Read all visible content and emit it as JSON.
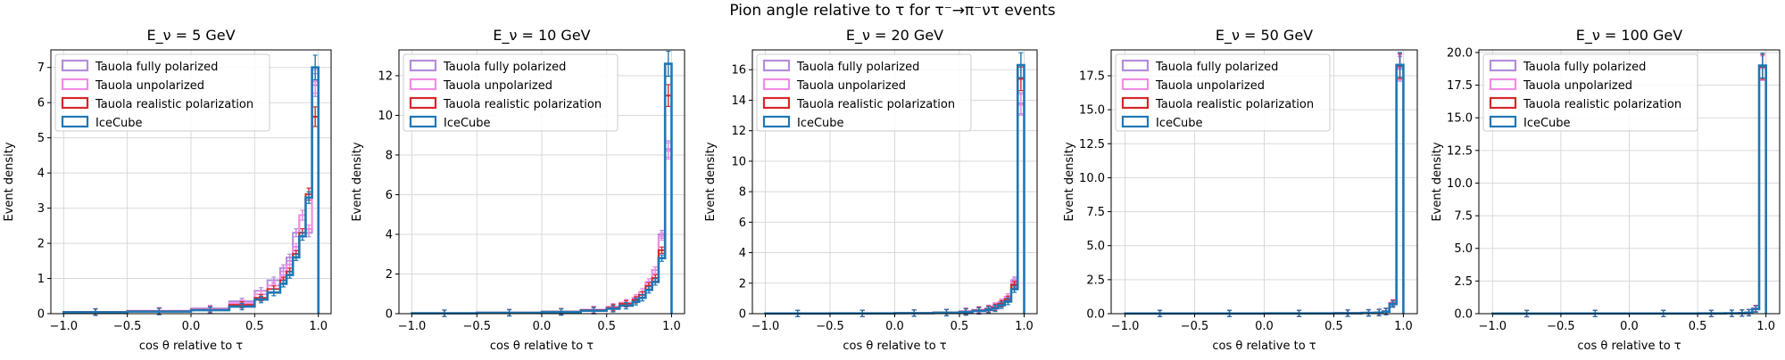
{
  "figure": {
    "title": "Pion angle relative to τ for τ⁻→π⁻ντ events"
  },
  "colors": {
    "fully_polarized": "#b48cdc",
    "unpolarized": "#f08ce6",
    "realistic": "#d62728",
    "icecube": "#1f77b4",
    "grid": "#d9d9d9"
  },
  "chart_data": [
    {
      "type": "histogram",
      "title": "E_ν = 5 GeV",
      "xlabel": "cos θ relative to τ",
      "ylabel": "Event density",
      "xlim": [
        -1.1,
        1.1
      ],
      "ylim": [
        0,
        7.5
      ],
      "xticks": [
        "−1.0",
        "−0.5",
        "0.0",
        "0.5",
        "1.0"
      ],
      "xtick_values": [
        -1.0,
        -0.5,
        0.0,
        0.5,
        1.0
      ],
      "yticks": [
        "0",
        "1",
        "2",
        "3",
        "4",
        "5",
        "6",
        "7"
      ],
      "ytick_values": [
        0,
        1,
        2,
        3,
        4,
        5,
        6,
        7
      ],
      "grid": true,
      "legend_position": "top-left",
      "series": [
        {
          "name": "Tauola fully polarized",
          "edges": [
            -1.0,
            -0.5,
            0.0,
            0.3,
            0.5,
            0.6,
            0.7,
            0.75,
            0.8,
            0.85,
            0.9,
            0.95,
            1.0
          ],
          "values": [
            0.04,
            0.08,
            0.15,
            0.35,
            0.65,
            0.95,
            1.3,
            1.6,
            2.3,
            2.8,
            2.3,
            6.5
          ]
        },
        {
          "name": "Tauola unpolarized",
          "edges": [
            -1.0,
            -0.5,
            0.0,
            0.3,
            0.5,
            0.6,
            0.7,
            0.75,
            0.8,
            0.85,
            0.9,
            0.95,
            1.0
          ],
          "values": [
            0.05,
            0.08,
            0.13,
            0.3,
            0.55,
            0.8,
            1.1,
            1.4,
            1.9,
            2.8,
            2.4,
            6.6
          ]
        },
        {
          "name": "Tauola realistic polarization",
          "edges": [
            -1.0,
            -0.5,
            0.0,
            0.3,
            0.5,
            0.6,
            0.7,
            0.75,
            0.8,
            0.85,
            0.9,
            0.95,
            1.0
          ],
          "values": [
            0.05,
            0.07,
            0.11,
            0.25,
            0.45,
            0.7,
            0.95,
            1.2,
            1.7,
            2.3,
            3.4,
            5.6
          ]
        },
        {
          "name": "IceCube",
          "edges": [
            -1.0,
            -0.5,
            0.0,
            0.3,
            0.5,
            0.6,
            0.7,
            0.75,
            0.8,
            0.85,
            0.9,
            0.95,
            1.0
          ],
          "values": [
            0.04,
            0.06,
            0.1,
            0.2,
            0.4,
            0.6,
            0.85,
            1.1,
            1.6,
            2.2,
            3.3,
            7.0
          ]
        }
      ]
    },
    {
      "type": "histogram",
      "title": "E_ν = 10 GeV",
      "xlabel": "cos θ relative to τ",
      "ylabel": "Event density",
      "xlim": [
        -1.1,
        1.1
      ],
      "ylim": [
        0,
        13.3
      ],
      "xticks": [
        "−1.0",
        "−0.5",
        "0.0",
        "0.5",
        "1.0"
      ],
      "xtick_values": [
        -1.0,
        -0.5,
        0.0,
        0.5,
        1.0
      ],
      "yticks": [
        "0",
        "2",
        "4",
        "6",
        "8",
        "10",
        "12"
      ],
      "ytick_values": [
        0,
        2,
        4,
        6,
        8,
        10,
        12
      ],
      "grid": true,
      "legend_position": "top-left",
      "series": [
        {
          "name": "Tauola fully polarized",
          "edges": [
            -1.0,
            -0.5,
            0.0,
            0.3,
            0.5,
            0.6,
            0.7,
            0.75,
            0.8,
            0.85,
            0.9,
            0.95,
            1.0
          ],
          "values": [
            0.02,
            0.05,
            0.1,
            0.2,
            0.35,
            0.55,
            0.8,
            1.1,
            1.6,
            2.2,
            4.0,
            8.3
          ]
        },
        {
          "name": "Tauola unpolarized",
          "edges": [
            -1.0,
            -0.5,
            0.0,
            0.3,
            0.5,
            0.6,
            0.7,
            0.75,
            0.8,
            0.85,
            0.9,
            0.95,
            1.0
          ],
          "values": [
            0.02,
            0.05,
            0.1,
            0.2,
            0.35,
            0.55,
            0.8,
            1.1,
            1.6,
            2.2,
            3.9,
            8.2
          ]
        },
        {
          "name": "Tauola realistic polarization",
          "edges": [
            -1.0,
            -0.5,
            0.0,
            0.3,
            0.5,
            0.6,
            0.7,
            0.75,
            0.8,
            0.85,
            0.9,
            0.95,
            1.0
          ],
          "values": [
            0.02,
            0.05,
            0.1,
            0.18,
            0.3,
            0.5,
            0.7,
            0.95,
            1.4,
            1.8,
            3.2,
            11.0
          ]
        },
        {
          "name": "IceCube",
          "edges": [
            -1.0,
            -0.5,
            0.0,
            0.3,
            0.5,
            0.6,
            0.7,
            0.75,
            0.8,
            0.85,
            0.9,
            0.95,
            1.0
          ],
          "values": [
            0.02,
            0.04,
            0.08,
            0.15,
            0.25,
            0.4,
            0.6,
            0.8,
            1.2,
            1.6,
            2.8,
            12.6
          ]
        }
      ]
    },
    {
      "type": "histogram",
      "title": "E_ν = 20 GeV",
      "xlabel": "cos θ relative to τ",
      "ylabel": "Event density",
      "xlim": [
        -1.1,
        1.1
      ],
      "ylim": [
        0,
        17.3
      ],
      "xticks": [
        "−1.0",
        "−0.5",
        "0.0",
        "0.5",
        "1.0"
      ],
      "xtick_values": [
        -1.0,
        -0.5,
        0.0,
        0.5,
        1.0
      ],
      "yticks": [
        "0",
        "2",
        "4",
        "6",
        "8",
        "10",
        "12",
        "14",
        "16"
      ],
      "ytick_values": [
        0,
        2,
        4,
        6,
        8,
        10,
        12,
        14,
        16
      ],
      "grid": true,
      "legend_position": "top-left",
      "series": [
        {
          "name": "Tauola fully polarized",
          "edges": [
            -1.0,
            -0.5,
            0.0,
            0.3,
            0.5,
            0.6,
            0.7,
            0.75,
            0.8,
            0.85,
            0.9,
            0.95,
            1.0
          ],
          "values": [
            0.01,
            0.02,
            0.04,
            0.08,
            0.15,
            0.25,
            0.35,
            0.5,
            0.75,
            1.1,
            2.2,
            13.8
          ]
        },
        {
          "name": "Tauola unpolarized",
          "edges": [
            -1.0,
            -0.5,
            0.0,
            0.3,
            0.5,
            0.6,
            0.7,
            0.75,
            0.8,
            0.85,
            0.9,
            0.95,
            1.0
          ],
          "values": [
            0.01,
            0.02,
            0.04,
            0.08,
            0.15,
            0.25,
            0.35,
            0.5,
            0.75,
            1.1,
            2.1,
            13.7
          ]
        },
        {
          "name": "Tauola realistic polarization",
          "edges": [
            -1.0,
            -0.5,
            0.0,
            0.3,
            0.5,
            0.6,
            0.7,
            0.75,
            0.8,
            0.85,
            0.9,
            0.95,
            1.0
          ],
          "values": [
            0.01,
            0.02,
            0.04,
            0.07,
            0.13,
            0.22,
            0.3,
            0.42,
            0.65,
            0.95,
            1.9,
            15.4
          ]
        },
        {
          "name": "IceCube",
          "edges": [
            -1.0,
            -0.5,
            0.0,
            0.3,
            0.5,
            0.6,
            0.7,
            0.75,
            0.8,
            0.85,
            0.9,
            0.95,
            1.0
          ],
          "values": [
            0.01,
            0.02,
            0.03,
            0.06,
            0.1,
            0.18,
            0.25,
            0.35,
            0.55,
            0.8,
            1.6,
            16.3
          ]
        }
      ]
    },
    {
      "type": "histogram",
      "title": "E_ν = 50 GeV",
      "xlabel": "cos θ relative to τ",
      "ylabel": "Event density",
      "xlim": [
        -1.1,
        1.1
      ],
      "ylim": [
        0,
        19.4
      ],
      "xticks": [
        "−1.0",
        "−0.5",
        "0.0",
        "0.5",
        "1.0"
      ],
      "xtick_values": [
        -1.0,
        -0.5,
        0.0,
        0.5,
        1.0
      ],
      "yticks": [
        "0.0",
        "2.5",
        "5.0",
        "7.5",
        "10.0",
        "12.5",
        "15.0",
        "17.5"
      ],
      "ytick_values": [
        0,
        2.5,
        5,
        7.5,
        10,
        12.5,
        15,
        17.5
      ],
      "grid": true,
      "legend_position": "top-left",
      "series": [
        {
          "name": "Tauola fully polarized",
          "edges": [
            -1.0,
            -0.5,
            0.0,
            0.5,
            0.7,
            0.8,
            0.85,
            0.9,
            0.95,
            1.0
          ],
          "values": [
            0.01,
            0.01,
            0.02,
            0.04,
            0.07,
            0.1,
            0.18,
            0.8,
            18.0
          ]
        },
        {
          "name": "Tauola unpolarized",
          "edges": [
            -1.0,
            -0.5,
            0.0,
            0.5,
            0.7,
            0.8,
            0.85,
            0.9,
            0.95,
            1.0
          ],
          "values": [
            0.01,
            0.01,
            0.02,
            0.04,
            0.07,
            0.1,
            0.18,
            0.8,
            18.1
          ]
        },
        {
          "name": "Tauola realistic polarization",
          "edges": [
            -1.0,
            -0.5,
            0.0,
            0.5,
            0.7,
            0.8,
            0.85,
            0.9,
            0.95,
            1.0
          ],
          "values": [
            0.01,
            0.01,
            0.02,
            0.04,
            0.06,
            0.09,
            0.16,
            0.75,
            18.2
          ]
        },
        {
          "name": "IceCube",
          "edges": [
            -1.0,
            -0.5,
            0.0,
            0.5,
            0.7,
            0.8,
            0.85,
            0.9,
            0.95,
            1.0
          ],
          "values": [
            0.01,
            0.01,
            0.02,
            0.03,
            0.05,
            0.08,
            0.15,
            0.7,
            18.3
          ]
        }
      ]
    },
    {
      "type": "histogram",
      "title": "E_ν = 100 GeV",
      "xlabel": "cos θ relative to τ",
      "ylabel": "Event density",
      "xlim": [
        -1.1,
        1.1
      ],
      "ylim": [
        0,
        20.2
      ],
      "xticks": [
        "−1.0",
        "−0.5",
        "0.0",
        "0.5",
        "1.0"
      ],
      "xtick_values": [
        -1.0,
        -0.5,
        0.0,
        0.5,
        1.0
      ],
      "yticks": [
        "0.0",
        "2.5",
        "5.0",
        "7.5",
        "10.0",
        "12.5",
        "15.0",
        "17.5",
        "20.0"
      ],
      "ytick_values": [
        0,
        2.5,
        5,
        7.5,
        10,
        12.5,
        15,
        17.5,
        20
      ],
      "grid": true,
      "legend_position": "top-left",
      "series": [
        {
          "name": "Tauola fully polarized",
          "edges": [
            -1.0,
            -0.5,
            0.0,
            0.5,
            0.7,
            0.8,
            0.85,
            0.9,
            0.95,
            1.0
          ],
          "values": [
            0.005,
            0.01,
            0.01,
            0.02,
            0.03,
            0.05,
            0.08,
            0.4,
            18.8
          ]
        },
        {
          "name": "Tauola unpolarized",
          "edges": [
            -1.0,
            -0.5,
            0.0,
            0.5,
            0.7,
            0.8,
            0.85,
            0.9,
            0.95,
            1.0
          ],
          "values": [
            0.005,
            0.01,
            0.01,
            0.02,
            0.03,
            0.05,
            0.08,
            0.4,
            18.8
          ]
        },
        {
          "name": "Tauola realistic polarization",
          "edges": [
            -1.0,
            -0.5,
            0.0,
            0.5,
            0.7,
            0.8,
            0.85,
            0.9,
            0.95,
            1.0
          ],
          "values": [
            0.005,
            0.01,
            0.01,
            0.02,
            0.03,
            0.05,
            0.08,
            0.38,
            18.9
          ]
        },
        {
          "name": "IceCube",
          "edges": [
            -1.0,
            -0.5,
            0.0,
            0.5,
            0.7,
            0.8,
            0.85,
            0.9,
            0.95,
            1.0
          ],
          "values": [
            0.005,
            0.01,
            0.01,
            0.02,
            0.03,
            0.04,
            0.07,
            0.35,
            19.0
          ]
        }
      ]
    }
  ]
}
